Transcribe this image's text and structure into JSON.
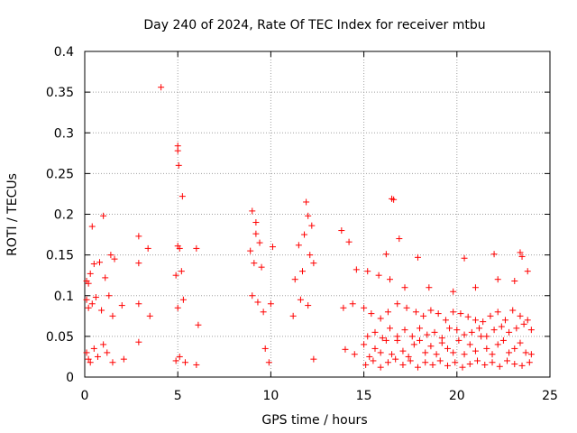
{
  "chart_data": {
    "type": "scatter",
    "title": "Day 240 of 2024, Rate Of TEC Index for receiver mtbu",
    "xlabel": "GPS time / hours",
    "ylabel": "ROTI / TECUs",
    "xlim": [
      0,
      25
    ],
    "ylim": [
      0,
      0.4
    ],
    "x_ticks": [
      "0",
      "5",
      "10",
      "15",
      "20",
      "25"
    ],
    "y_ticks": [
      "0",
      "0.05",
      "0.1",
      "0.15",
      "0.2",
      "0.25",
      "0.3",
      "0.35",
      "0.4"
    ],
    "grid": true,
    "marker": "+",
    "color": "#ff0000",
    "series": [
      {
        "name": "ROTI",
        "x": [
          4.1,
          5.0,
          5.0,
          5.05,
          5.25,
          9.0,
          9.2,
          11.9,
          12.0,
          12.2,
          16.5,
          16.6,
          0.4,
          1.0,
          2.9,
          3.4,
          5.0,
          5.1,
          6.0,
          9.2,
          9.4,
          11.5,
          11.8,
          12.1,
          13.8,
          14.2,
          16.2,
          16.9,
          17.9,
          20.4,
          22.0,
          23.4,
          23.5,
          0.1,
          0.2,
          0.3,
          0.5,
          0.8,
          1.1,
          1.4,
          1.6,
          2.9,
          4.9,
          5.2,
          8.9,
          9.1,
          9.5,
          10.1,
          11.3,
          11.7,
          12.3,
          14.6,
          15.2,
          15.8,
          16.4,
          17.2,
          18.5,
          19.8,
          21.0,
          22.2,
          23.1,
          23.8,
          0.1,
          0.2,
          0.4,
          0.6,
          0.9,
          1.3,
          1.5,
          2.0,
          2.9,
          3.5,
          5.0,
          5.3,
          6.1,
          9.0,
          9.3,
          9.6,
          10.0,
          11.2,
          11.6,
          12.0,
          13.9,
          14.4,
          15.0,
          15.4,
          15.9,
          16.3,
          16.8,
          17.3,
          17.8,
          18.2,
          18.6,
          19.0,
          19.4,
          19.8,
          20.2,
          20.6,
          21.0,
          21.4,
          21.8,
          22.2,
          22.6,
          23.0,
          23.4,
          23.8,
          0.1,
          0.2,
          0.3,
          0.5,
          0.7,
          1.0,
          1.2,
          1.5,
          2.1,
          2.9,
          4.9,
          5.1,
          5.4,
          6.0,
          9.7,
          9.9,
          12.3,
          14.0,
          14.5,
          15.0,
          15.3,
          15.6,
          15.9,
          16.2,
          16.5,
          16.8,
          17.1,
          17.4,
          17.7,
          18.0,
          18.3,
          18.6,
          18.9,
          19.2,
          19.5,
          19.8,
          20.1,
          20.4,
          20.7,
          21.0,
          21.3,
          21.6,
          21.9,
          22.2,
          22.5,
          22.8,
          23.1,
          23.4,
          23.7,
          24.0,
          15.1,
          15.5,
          15.9,
          16.3,
          16.7,
          17.1,
          17.5,
          17.9,
          18.3,
          18.7,
          19.1,
          19.5,
          19.9,
          20.3,
          20.7,
          21.1,
          21.5,
          21.9,
          22.3,
          22.7,
          23.1,
          23.5,
          23.9,
          15.2,
          15.6,
          16.0,
          16.4,
          16.8,
          17.2,
          17.6,
          18.0,
          18.4,
          18.8,
          19.2,
          19.6,
          20.0,
          20.4,
          20.8,
          21.2,
          21.6,
          22.0,
          22.4,
          22.8,
          23.2,
          23.6,
          24.0
        ],
        "y": [
          0.356,
          0.284,
          0.278,
          0.26,
          0.222,
          0.204,
          0.19,
          0.215,
          0.198,
          0.186,
          0.219,
          0.218,
          0.185,
          0.198,
          0.173,
          0.158,
          0.161,
          0.158,
          0.158,
          0.176,
          0.165,
          0.162,
          0.175,
          0.15,
          0.18,
          0.166,
          0.151,
          0.17,
          0.147,
          0.146,
          0.151,
          0.153,
          0.148,
          0.118,
          0.115,
          0.127,
          0.139,
          0.141,
          0.122,
          0.15,
          0.145,
          0.14,
          0.125,
          0.13,
          0.155,
          0.14,
          0.135,
          0.16,
          0.12,
          0.13,
          0.14,
          0.132,
          0.13,
          0.125,
          0.12,
          0.11,
          0.11,
          0.105,
          0.11,
          0.12,
          0.118,
          0.13,
          0.095,
          0.085,
          0.09,
          0.098,
          0.082,
          0.1,
          0.075,
          0.088,
          0.09,
          0.075,
          0.085,
          0.095,
          0.064,
          0.1,
          0.092,
          0.08,
          0.09,
          0.075,
          0.095,
          0.088,
          0.085,
          0.09,
          0.085,
          0.078,
          0.072,
          0.08,
          0.09,
          0.085,
          0.08,
          0.075,
          0.082,
          0.078,
          0.07,
          0.08,
          0.078,
          0.074,
          0.07,
          0.068,
          0.075,
          0.08,
          0.07,
          0.082,
          0.075,
          0.07,
          0.03,
          0.022,
          0.018,
          0.035,
          0.025,
          0.04,
          0.03,
          0.018,
          0.022,
          0.043,
          0.02,
          0.025,
          0.018,
          0.015,
          0.035,
          0.018,
          0.022,
          0.034,
          0.028,
          0.04,
          0.025,
          0.035,
          0.03,
          0.045,
          0.028,
          0.05,
          0.032,
          0.025,
          0.04,
          0.045,
          0.03,
          0.038,
          0.028,
          0.042,
          0.035,
          0.03,
          0.045,
          0.028,
          0.04,
          0.032,
          0.05,
          0.035,
          0.028,
          0.04,
          0.045,
          0.03,
          0.035,
          0.042,
          0.03,
          0.028,
          0.015,
          0.02,
          0.012,
          0.018,
          0.022,
          0.015,
          0.02,
          0.012,
          0.018,
          0.015,
          0.02,
          0.014,
          0.018,
          0.012,
          0.016,
          0.02,
          0.015,
          0.018,
          0.013,
          0.02,
          0.016,
          0.014,
          0.018,
          0.05,
          0.055,
          0.048,
          0.06,
          0.045,
          0.058,
          0.05,
          0.06,
          0.052,
          0.055,
          0.048,
          0.06,
          0.058,
          0.052,
          0.055,
          0.06,
          0.05,
          0.058,
          0.062,
          0.055,
          0.06,
          0.065,
          0.058
        ]
      }
    ]
  }
}
